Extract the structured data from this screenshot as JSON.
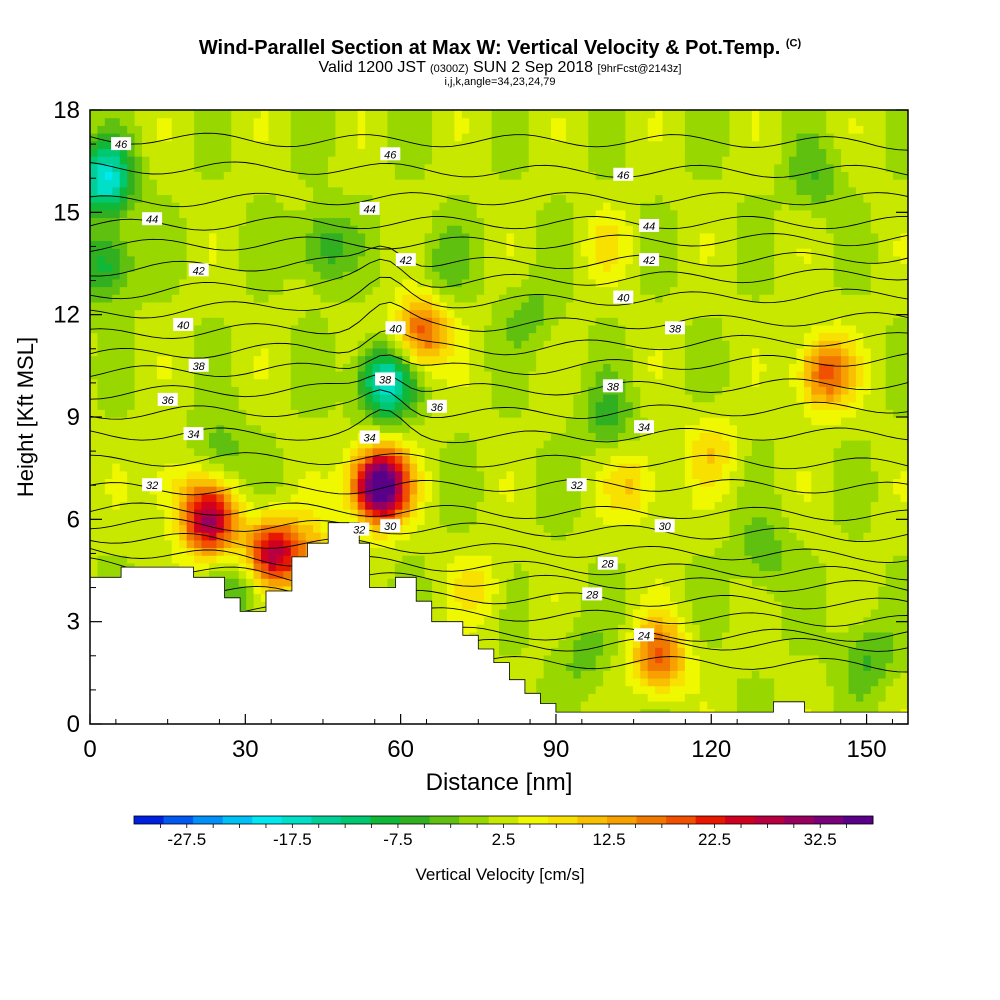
{
  "title": {
    "main": "Wind-Parallel Section at Max W: Vertical Velocity & Pot.Temp.",
    "main_tag": "(C)",
    "valid_prefix": "Valid 1200 JST",
    "valid_utc": "(0300Z)",
    "valid_date": "SUN 2 Sep 2018",
    "forecast": "[9hrFcst@2143z]",
    "indices": "i,j,k,angle=34,23,24,79"
  },
  "colors": {
    "terrain": "#ffffff",
    "contour": "#000000",
    "palette": [
      "#0020e0",
      "#0058f0",
      "#0090f8",
      "#00c0f8",
      "#00e8f0",
      "#00e0c8",
      "#00d098",
      "#00c870",
      "#10b838",
      "#30b020",
      "#60c010",
      "#98d800",
      "#c8e800",
      "#f0f800",
      "#f8e000",
      "#f8c000",
      "#f8a000",
      "#f07800",
      "#f05000",
      "#e81800",
      "#d00020",
      "#b80040",
      "#980060",
      "#780078",
      "#580088"
    ]
  },
  "chart_data": {
    "type": "heatmap",
    "xlabel": "Distance [nm]",
    "ylabel": "Height [Kft MSL]",
    "xlim": [
      0,
      158
    ],
    "ylim": [
      0,
      18
    ],
    "xticks": [
      0,
      30,
      60,
      90,
      120,
      150
    ],
    "yticks": [
      0,
      3,
      6,
      9,
      12,
      15,
      18
    ],
    "colorbar": {
      "label": "Vertical Velocity [cm/s]",
      "range": [
        -32.5,
        37.5
      ],
      "step": 2.5,
      "tick_labels": [
        "-27.5",
        "-17.5",
        "-7.5",
        "2.5",
        "12.5",
        "22.5",
        "32.5"
      ]
    },
    "shaded_field": {
      "name": "Vertical Velocity",
      "units": "cm/s",
      "background": -2,
      "features": [
        {
          "x": 3,
          "y": 16,
          "value": -20,
          "note": "downdraft upper-left"
        },
        {
          "x": 3,
          "y": 13.5,
          "value": -12
        },
        {
          "x": 56,
          "y": 7,
          "value": 35,
          "note": "maximum updraft"
        },
        {
          "x": 57,
          "y": 10,
          "value": -20,
          "note": "downdraft above updraft"
        },
        {
          "x": 64,
          "y": 11.5,
          "value": 14
        },
        {
          "x": 142,
          "y": 10.3,
          "value": 14,
          "note": "broad updraft right"
        },
        {
          "x": 23,
          "y": 6,
          "value": 22
        },
        {
          "x": 35,
          "y": 5,
          "value": 20
        },
        {
          "x": 110,
          "y": 2,
          "value": 13
        },
        {
          "x": 105,
          "y": 7,
          "value": 5
        },
        {
          "x": 15,
          "y": 7,
          "value": 3
        },
        {
          "x": 75,
          "y": 4,
          "value": 3
        },
        {
          "x": 100,
          "y": 14,
          "value": 2
        },
        {
          "x": 120,
          "y": 8,
          "value": 4
        },
        {
          "x": 45,
          "y": 14,
          "value": -10
        },
        {
          "x": 25,
          "y": 8,
          "value": -7
        },
        {
          "x": 85,
          "y": 12,
          "value": -6
        },
        {
          "x": 100,
          "y": 9,
          "value": -8
        },
        {
          "x": 140,
          "y": 16,
          "value": -7
        },
        {
          "x": 95,
          "y": 2,
          "value": -6
        },
        {
          "x": 130,
          "y": 5,
          "value": -7
        },
        {
          "x": 150,
          "y": 2,
          "value": -8
        },
        {
          "x": 30,
          "y": 4,
          "value": -9
        },
        {
          "x": 42,
          "y": 5,
          "value": 6
        },
        {
          "x": 68,
          "y": 13.5,
          "value": -6
        }
      ]
    },
    "terrain_profile": [
      [
        0,
        4.3
      ],
      [
        6,
        4.3
      ],
      [
        6,
        4.6
      ],
      [
        20,
        4.6
      ],
      [
        20,
        4.3
      ],
      [
        26,
        4.3
      ],
      [
        26,
        3.7
      ],
      [
        29,
        3.7
      ],
      [
        29,
        3.3
      ],
      [
        34,
        3.3
      ],
      [
        34,
        3.9
      ],
      [
        39,
        3.9
      ],
      [
        39,
        4.9
      ],
      [
        42,
        4.9
      ],
      [
        42,
        5.3
      ],
      [
        46,
        5.3
      ],
      [
        46,
        5.9
      ],
      [
        52,
        5.9
      ],
      [
        52,
        5.3
      ],
      [
        54,
        5.3
      ],
      [
        54,
        4.0
      ],
      [
        59,
        4.0
      ],
      [
        59,
        4.3
      ],
      [
        63,
        4.3
      ],
      [
        63,
        3.6
      ],
      [
        66,
        3.6
      ],
      [
        66,
        3.0
      ],
      [
        72,
        3.0
      ],
      [
        72,
        2.6
      ],
      [
        75,
        2.6
      ],
      [
        75,
        2.2
      ],
      [
        78,
        2.2
      ],
      [
        78,
        1.8
      ],
      [
        81,
        1.8
      ],
      [
        81,
        1.3
      ],
      [
        84,
        1.3
      ],
      [
        84,
        0.9
      ],
      [
        87,
        0.9
      ],
      [
        87,
        0.6
      ],
      [
        90,
        0.6
      ],
      [
        90,
        0.35
      ],
      [
        132,
        0.35
      ],
      [
        132,
        0.65
      ],
      [
        138,
        0.65
      ],
      [
        138,
        0.35
      ],
      [
        158,
        0.35
      ]
    ],
    "contours": {
      "field": "Potential Temperature",
      "units": "C",
      "levels": [
        {
          "value": 22,
          "heights": [
            1.8,
            1.8,
            1.8,
            1.8,
            1.7
          ]
        },
        {
          "value": 23,
          "heights": [
            2.3,
            2.3,
            2.3,
            2.35,
            2.3
          ]
        },
        {
          "value": 24,
          "heights": [
            2.7,
            2.7,
            2.65,
            2.6,
            2.6
          ]
        },
        {
          "value": 25,
          "heights": [
            3.4,
            3.3,
            3.2,
            3.1,
            3.0
          ]
        },
        {
          "value": 26,
          "heights": [
            4.1,
            3.8,
            3.7,
            3.6,
            3.5
          ]
        },
        {
          "value": 27,
          "heights": [
            4.7,
            4.3,
            4.2,
            4.1,
            4.0
          ]
        },
        {
          "value": 28,
          "heights": [
            5.1,
            4.8,
            4.6,
            4.5,
            4.4
          ]
        },
        {
          "value": 29,
          "heights": [
            5.5,
            5.3,
            5.1,
            5.0,
            4.9
          ]
        },
        {
          "value": 30,
          "heights": [
            5.9,
            5.8,
            5.7,
            5.6,
            5.5
          ]
        },
        {
          "value": 31,
          "heights": [
            6.3,
            6.3,
            6.2,
            6.2,
            6.1
          ]
        },
        {
          "value": 32,
          "heights": [
            6.9,
            6.9,
            7.0,
            7.0,
            6.9
          ]
        },
        {
          "value": 33,
          "heights": [
            7.7,
            7.8,
            7.7,
            7.7,
            7.6
          ]
        },
        {
          "value": 34,
          "heights": [
            8.5,
            8.5,
            8.4,
            8.5,
            8.5
          ]
        },
        {
          "value": 35,
          "heights": [
            9.1,
            9.2,
            9.1,
            9.2,
            9.3
          ]
        },
        {
          "value": 36,
          "heights": [
            9.7,
            9.8,
            9.8,
            9.9,
            10.0
          ]
        },
        {
          "value": 37,
          "heights": [
            10.3,
            10.4,
            10.4,
            10.6,
            10.7
          ]
        },
        {
          "value": 38,
          "heights": [
            10.8,
            11.0,
            11.0,
            11.2,
            11.3
          ]
        },
        {
          "value": 39,
          "heights": [
            11.4,
            11.6,
            11.7,
            11.8,
            11.9
          ]
        },
        {
          "value": 40,
          "heights": [
            12.0,
            12.3,
            12.4,
            12.5,
            12.6
          ]
        },
        {
          "value": 41,
          "heights": [
            12.6,
            12.9,
            13.0,
            13.1,
            13.2
          ]
        },
        {
          "value": 42,
          "heights": [
            13.3,
            13.5,
            13.5,
            13.6,
            13.7
          ]
        },
        {
          "value": 43,
          "heights": [
            14.0,
            14.1,
            14.1,
            14.2,
            14.2
          ]
        },
        {
          "value": 44,
          "heights": [
            14.6,
            14.7,
            14.7,
            14.7,
            14.7
          ]
        },
        {
          "value": 45,
          "heights": [
            15.3,
            15.4,
            15.4,
            15.4,
            15.4
          ]
        },
        {
          "value": 46,
          "heights": [
            16.3,
            16.3,
            16.2,
            16.2,
            16.2
          ]
        },
        {
          "value": 47,
          "heights": [
            17.2,
            17.1,
            17.1,
            17.1,
            17.0
          ]
        }
      ],
      "labels": [
        {
          "text": "46",
          "x": 6,
          "y": 17.0
        },
        {
          "text": "46",
          "x": 58,
          "y": 16.7
        },
        {
          "text": "46",
          "x": 103,
          "y": 16.1
        },
        {
          "text": "44",
          "x": 12,
          "y": 14.8
        },
        {
          "text": "44",
          "x": 54,
          "y": 15.1
        },
        {
          "text": "44",
          "x": 108,
          "y": 14.6
        },
        {
          "text": "42",
          "x": 21,
          "y": 13.3
        },
        {
          "text": "42",
          "x": 61,
          "y": 13.6
        },
        {
          "text": "42",
          "x": 108,
          "y": 13.6
        },
        {
          "text": "40",
          "x": 18,
          "y": 11.7
        },
        {
          "text": "40",
          "x": 59,
          "y": 11.6
        },
        {
          "text": "40",
          "x": 103,
          "y": 12.5
        },
        {
          "text": "38",
          "x": 21,
          "y": 10.5
        },
        {
          "text": "38",
          "x": 57,
          "y": 10.1
        },
        {
          "text": "38",
          "x": 113,
          "y": 11.6
        },
        {
          "text": "38",
          "x": 101,
          "y": 9.9
        },
        {
          "text": "36",
          "x": 15,
          "y": 9.5
        },
        {
          "text": "36",
          "x": 67,
          "y": 9.3
        },
        {
          "text": "34",
          "x": 20,
          "y": 8.5
        },
        {
          "text": "34",
          "x": 54,
          "y": 8.4
        },
        {
          "text": "34",
          "x": 107,
          "y": 8.7
        },
        {
          "text": "32",
          "x": 12,
          "y": 7.0
        },
        {
          "text": "32",
          "x": 94,
          "y": 7.0
        },
        {
          "text": "32",
          "x": 52,
          "y": 5.7
        },
        {
          "text": "30",
          "x": 58,
          "y": 5.8
        },
        {
          "text": "30",
          "x": 111,
          "y": 5.8
        },
        {
          "text": "28",
          "x": 100,
          "y": 4.7
        },
        {
          "text": "28",
          "x": 97,
          "y": 3.8
        },
        {
          "text": "24",
          "x": 107,
          "y": 2.6
        }
      ]
    }
  }
}
